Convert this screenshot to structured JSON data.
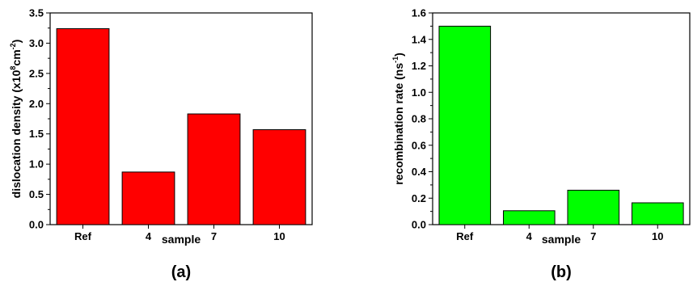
{
  "chart_data": [
    {
      "type": "bar",
      "panel_label": "(a)",
      "categories": [
        "Ref",
        "4",
        "7",
        "10"
      ],
      "values": [
        3.24,
        0.87,
        1.83,
        1.57
      ],
      "xlabel": "sample",
      "ylabel_parts": [
        "dislocation density (x10",
        "8",
        "cm",
        "-2",
        ")"
      ],
      "ylim": [
        0,
        3.5
      ],
      "yticks": [
        "0.0",
        "0.5",
        "1.0",
        "1.5",
        "2.0",
        "2.5",
        "3.0",
        "3.5"
      ],
      "bar_color": "#ff0000",
      "grid": false
    },
    {
      "type": "bar",
      "panel_label": "(b)",
      "categories": [
        "Ref",
        "4",
        "7",
        "10"
      ],
      "values": [
        1.5,
        0.105,
        0.26,
        0.165
      ],
      "xlabel": "sample",
      "ylabel_parts": [
        "recombination rate (ns",
        "-1",
        ")"
      ],
      "ylim": [
        0,
        1.6
      ],
      "yticks": [
        "0.0",
        "0.2",
        "0.4",
        "0.6",
        "0.8",
        "1.0",
        "1.2",
        "1.4",
        "1.6"
      ],
      "bar_color": "#00ff00",
      "grid": false
    }
  ]
}
